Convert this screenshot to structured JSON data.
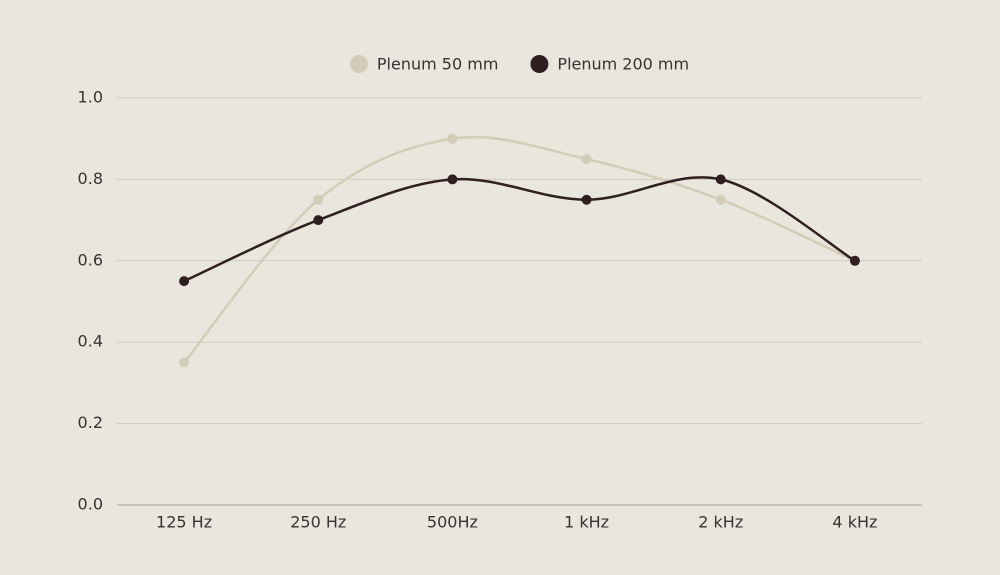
{
  "chart_data": {
    "type": "line",
    "categories": [
      "125 Hz",
      "250 Hz",
      "500Hz",
      "1 kHz",
      "2 kHz",
      "4 kHz"
    ],
    "series": [
      {
        "name": "Plenum 50 mm",
        "color": "#d2ccb8",
        "values": [
          0.35,
          0.75,
          0.9,
          0.85,
          0.75,
          0.6
        ]
      },
      {
        "name": "Plenum 200 mm",
        "color": "#2f1f20",
        "values": [
          0.55,
          0.7,
          0.8,
          0.75,
          0.8,
          0.6
        ]
      }
    ],
    "ylim": [
      0,
      1
    ],
    "yticks": [
      {
        "value": 0,
        "label": "0.0"
      },
      0.2,
      0.4,
      0.6,
      0.8,
      {
        "value": 1,
        "label": "1.0"
      }
    ],
    "grid": true,
    "smooth": true,
    "legend": "top"
  }
}
